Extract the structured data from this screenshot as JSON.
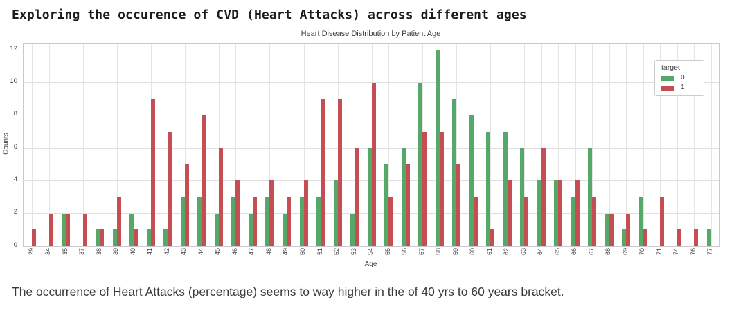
{
  "page": {
    "title": "Exploring the occurence of CVD (Heart Attacks) across different ages"
  },
  "chart_data": {
    "type": "bar",
    "title": "Heart Disease Distribution by Patient Age",
    "xlabel": "Age",
    "ylabel": "Counts",
    "categories": [
      "29",
      "34",
      "35",
      "37",
      "38",
      "39",
      "40",
      "41",
      "42",
      "43",
      "44",
      "45",
      "46",
      "47",
      "48",
      "49",
      "50",
      "51",
      "52",
      "53",
      "54",
      "55",
      "56",
      "57",
      "58",
      "59",
      "60",
      "61",
      "62",
      "63",
      "64",
      "65",
      "66",
      "67",
      "68",
      "69",
      "70",
      "71",
      "74",
      "76",
      "77"
    ],
    "series": [
      {
        "name": "0",
        "color": "#55a868",
        "values": [
          0,
          0,
          2,
          0,
          1,
          1,
          2,
          1,
          1,
          3,
          3,
          2,
          3,
          2,
          3,
          2,
          3,
          3,
          4,
          2,
          6,
          5,
          6,
          10,
          12,
          9,
          8,
          7,
          7,
          6,
          4,
          4,
          3,
          6,
          2,
          1,
          3,
          0,
          0,
          0,
          1
        ]
      },
      {
        "name": "1",
        "color": "#c44e52",
        "values": [
          1,
          2,
          2,
          2,
          1,
          3,
          1,
          9,
          7,
          5,
          8,
          6,
          4,
          3,
          4,
          3,
          4,
          9,
          9,
          6,
          10,
          3,
          5,
          7,
          7,
          5,
          3,
          1,
          4,
          3,
          6,
          4,
          4,
          3,
          2,
          2,
          1,
          3,
          1,
          1,
          0
        ]
      }
    ],
    "legend": {
      "title": "target",
      "position": "upper right"
    },
    "yticks": [
      0,
      2,
      4,
      6,
      8,
      10,
      12
    ],
    "ylim": [
      0,
      12.4
    ],
    "grid": true
  },
  "caption": {
    "text": "The occurrence of Heart Attacks (percentage) seems to way higher in the of 40 yrs to 60 years bracket."
  }
}
